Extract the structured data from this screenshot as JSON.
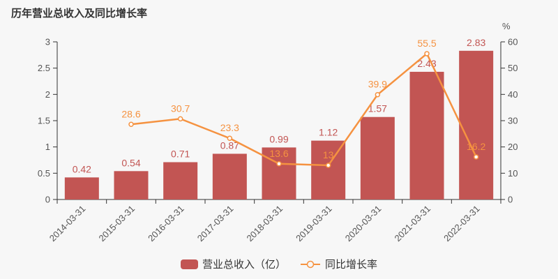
{
  "title": "历年营业总收入及同比增长率",
  "colors": {
    "background": "#f7f7f7",
    "bar": "#c25553",
    "bar_label": "#c25553",
    "line": "#f59240",
    "line_label": "#f59240",
    "marker_fill": "#ffffff",
    "axis": "#333333",
    "tick_label": "#555555",
    "title": "#333333",
    "legend_text": "#333333"
  },
  "chart_data": {
    "type": "bar+line combo",
    "title": "历年营业总收入及同比增长率",
    "categories": [
      "2014-03-31",
      "2015-03-31",
      "2016-03-31",
      "2017-03-31",
      "2018-03-31",
      "2019-03-31",
      "2020-03-31",
      "2021-03-31",
      "2022-03-31"
    ],
    "series": [
      {
        "name": "营业总收入（亿）",
        "type": "bar",
        "axis": "left",
        "values": [
          0.42,
          0.54,
          0.71,
          0.87,
          0.99,
          1.12,
          1.57,
          2.43,
          2.83
        ],
        "labels": [
          "0.42",
          "0.54",
          "0.71",
          "0.87",
          "0.99",
          "1.12",
          "1.57",
          "2.43",
          "2.83"
        ]
      },
      {
        "name": "同比增长率",
        "type": "line",
        "axis": "right",
        "values": [
          null,
          28.6,
          30.7,
          23.3,
          13.6,
          13,
          39.9,
          55.5,
          16.2
        ],
        "labels": [
          null,
          "28.6",
          "30.7",
          "23.3",
          "13.6",
          "13",
          "39.9",
          "55.5",
          "16.2"
        ]
      }
    ],
    "left_axis": {
      "min": 0,
      "max": 3,
      "ticks": [
        "0",
        "0.5",
        "1",
        "1.5",
        "2",
        "2.5",
        "3"
      ]
    },
    "right_axis": {
      "min": 0,
      "max": 60,
      "unit": "%",
      "ticks": [
        "0",
        "10",
        "20",
        "30",
        "40",
        "50",
        "60"
      ]
    },
    "grid": false,
    "legend_position": "bottom-center",
    "x_label_rotation": 45
  },
  "legend": {
    "bar_label": "营业总收入（亿）",
    "line_label": "同比增长率"
  }
}
